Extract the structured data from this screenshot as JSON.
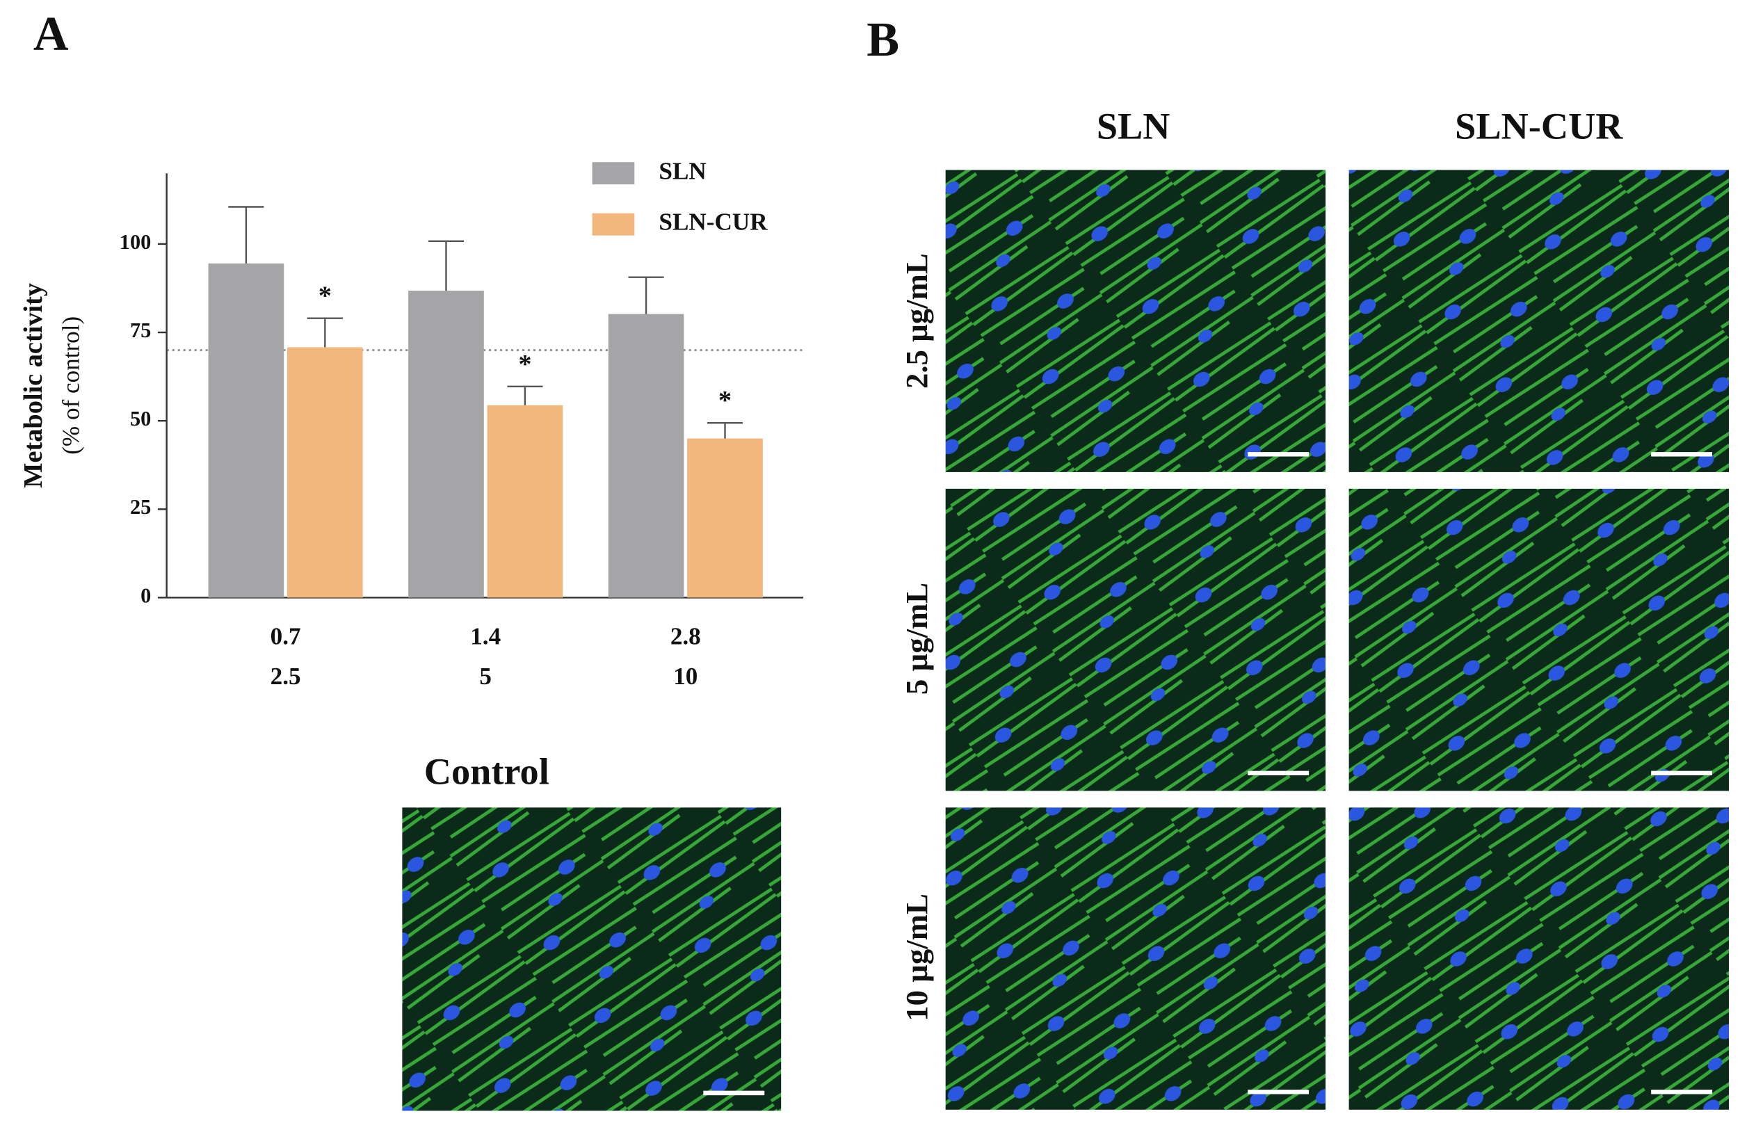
{
  "chart_data": {
    "type": "bar",
    "ylabel": [
      "Metabolic activity",
      "(% of control)"
    ],
    "categories": [
      [
        "0.7",
        "2.5"
      ],
      [
        "1.4",
        "5"
      ],
      [
        "2.8",
        "10"
      ]
    ],
    "series": [
      {
        "name": "SLN",
        "color": "#a5a5a8",
        "values": [
          94.5,
          86.8,
          80.2
        ],
        "errors": [
          16,
          14,
          10.4
        ]
      },
      {
        "name": "SLN-CUR",
        "color": "#f2b77c",
        "values": [
          70.8,
          54.4,
          45
        ],
        "errors": [
          8.2,
          5.3,
          4.4
        ],
        "annotations": [
          "*",
          "*",
          "*"
        ]
      }
    ],
    "reference_line": 70,
    "ylim": [
      0,
      120
    ],
    "yticks": [
      0,
      25,
      50,
      75,
      100
    ]
  },
  "figure": {
    "panel_a": "A",
    "panel_b": "B",
    "control_label": "Control",
    "columns": [
      "SLN",
      "SLN-CUR"
    ],
    "rows": [
      "2.5 µg/mL",
      "5 µg/mL",
      "10 µg/mL"
    ]
  }
}
